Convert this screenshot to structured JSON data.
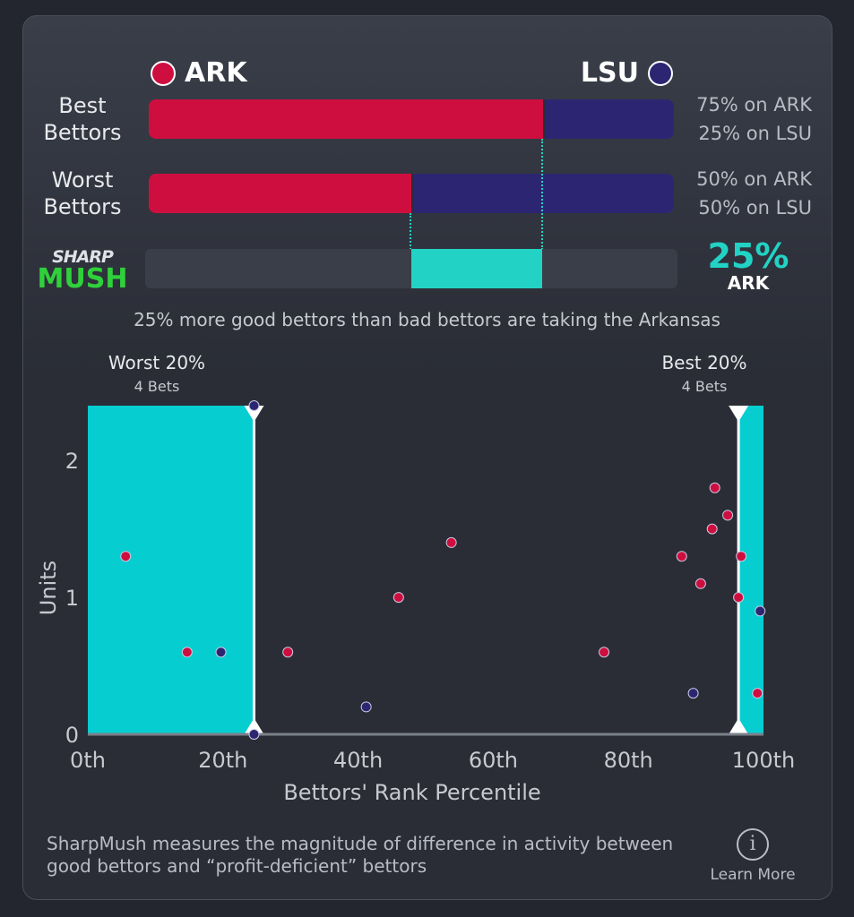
{
  "teams": {
    "left": {
      "name": "ARK",
      "color": "#cf0e40"
    },
    "right": {
      "name": "LSU",
      "color": "#2c2672"
    }
  },
  "rows": [
    {
      "label": "Best Bettors",
      "left_pct": 75,
      "right_pct": 25,
      "left_text": "75% on ARK",
      "right_text": "25% on LSU"
    },
    {
      "label": "Worst Bettors",
      "left_pct": 50,
      "right_pct": 50,
      "left_text": "50% on ARK",
      "right_text": "50% on LSU"
    }
  ],
  "sharpmush": {
    "logo_top": "SHARP",
    "logo_bottom": "MUSH",
    "value": "25%",
    "team": "ARK",
    "range": [
      50,
      75
    ],
    "color": "#22d3c5"
  },
  "summary": "25% more good bettors than bad bettors are taking the Arkansas",
  "chart_data": {
    "type": "scatter",
    "xlabel": "Bettors' Rank Percentile",
    "ylabel": "Units",
    "xlim": [
      0,
      100
    ],
    "ylim": [
      0,
      2.4
    ],
    "x_ticks": [
      "0th",
      "20th",
      "40th",
      "60th",
      "80th",
      "100th"
    ],
    "y_ticks": [
      "0",
      "1",
      "2"
    ],
    "regions": [
      {
        "label": "Worst 20%",
        "sublabel": "4 Bets",
        "range": [
          0,
          24.6
        ]
      },
      {
        "label": "Best 20%",
        "sublabel": "4 Bets",
        "range": [
          96.3,
          100
        ]
      }
    ],
    "region_color": "#06cdd0",
    "points": [
      {
        "x": 5.6,
        "y": 1.3,
        "team": "ARK"
      },
      {
        "x": 14.7,
        "y": 0.6,
        "team": "ARK"
      },
      {
        "x": 19.7,
        "y": 0.6,
        "team": "LSU"
      },
      {
        "x": 24.6,
        "y": 2.4,
        "team": "LSU"
      },
      {
        "x": 24.6,
        "y": 0,
        "team": "LSU"
      },
      {
        "x": 29.6,
        "y": 0.6,
        "team": "ARK"
      },
      {
        "x": 41.2,
        "y": 0.2,
        "team": "LSU"
      },
      {
        "x": 46,
        "y": 1.0,
        "team": "ARK"
      },
      {
        "x": 53.8,
        "y": 1.4,
        "team": "ARK"
      },
      {
        "x": 76.4,
        "y": 0.6,
        "team": "ARK"
      },
      {
        "x": 87.9,
        "y": 1.3,
        "team": "ARK"
      },
      {
        "x": 89.6,
        "y": 0.3,
        "team": "LSU"
      },
      {
        "x": 90.7,
        "y": 1.1,
        "team": "ARK"
      },
      {
        "x": 92.4,
        "y": 1.5,
        "team": "ARK"
      },
      {
        "x": 92.8,
        "y": 1.8,
        "team": "ARK"
      },
      {
        "x": 94.7,
        "y": 1.6,
        "team": "ARK"
      },
      {
        "x": 96.7,
        "y": 1.3,
        "team": "ARK"
      },
      {
        "x": 96.3,
        "y": 1.0,
        "team": "ARK"
      },
      {
        "x": 99.1,
        "y": 0.3,
        "team": "ARK"
      },
      {
        "x": 99.5,
        "y": 0.9,
        "team": "LSU"
      }
    ]
  },
  "footer": {
    "text": "SharpMush measures the magnitude of difference in activity between good bettors and “profit-deficient” bettors",
    "learn_more": "Learn More",
    "icon": "info-icon"
  }
}
